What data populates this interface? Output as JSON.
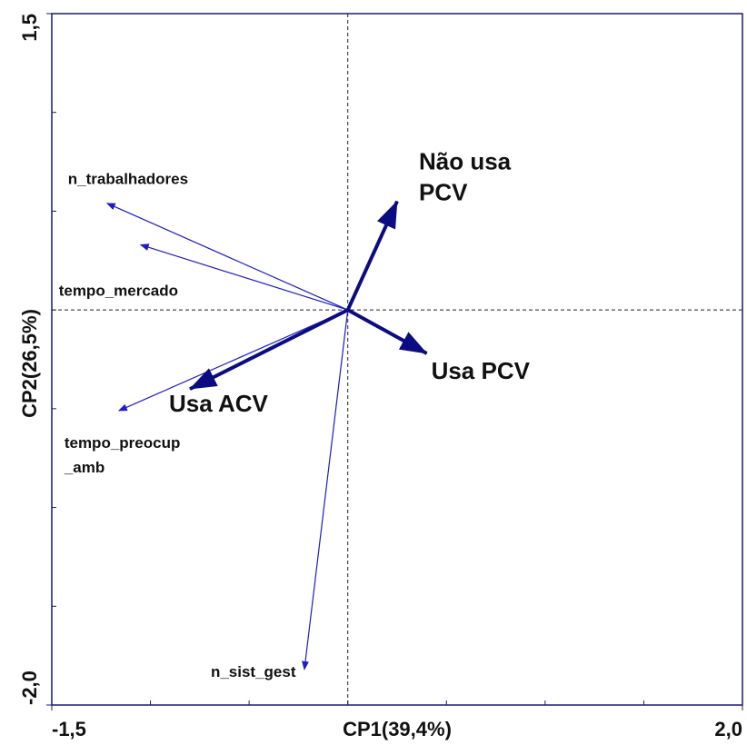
{
  "chart_data": {
    "type": "biplot",
    "x_label": "CP1(39,4%)",
    "y_label": "CP2(26,5%)",
    "xlim": [
      -1.5,
      2.0
    ],
    "ylim": [
      -2.0,
      1.5
    ],
    "xticks": [
      {
        "value": -1.5,
        "label": "-1,5"
      },
      {
        "value": 2.0,
        "label": "2,0"
      }
    ],
    "yticks": [
      {
        "value": -2.0,
        "label": "-2,0"
      },
      {
        "value": 1.5,
        "label": "1,5"
      }
    ],
    "xminor_ticks": [
      -1.0,
      -0.5,
      0,
      0.5,
      1.0,
      1.5
    ],
    "yminor_ticks": [
      -1.5,
      -1.0,
      -0.5,
      0,
      0.5,
      1.0
    ],
    "zero_lines": true,
    "vectors": [
      {
        "label_lines": [
          "n_trabalhadores"
        ],
        "x": -1.22,
        "y": 0.54,
        "style": "thin",
        "color": "#1c1cc8"
      },
      {
        "label_lines": [
          "tempo_mercado"
        ],
        "x": -1.05,
        "y": 0.33,
        "style": "thin",
        "color": "#1c1cc8"
      },
      {
        "label_lines": [
          "tempo_preocup",
          "_amb"
        ],
        "x": -1.16,
        "y": -0.51,
        "style": "thin",
        "color": "#1c1cc8"
      },
      {
        "label_lines": [
          "n_sist_gest"
        ],
        "x": -0.22,
        "y": -1.82,
        "style": "thin",
        "color": "#1c1cc8"
      },
      {
        "label_lines": [
          "Não usa",
          "PCV"
        ],
        "x": 0.25,
        "y": 0.55,
        "style": "thick",
        "color": "#0c0c82"
      },
      {
        "label_lines": [
          "Usa PCV"
        ],
        "x": 0.4,
        "y": -0.22,
        "style": "thick",
        "color": "#0c0c82"
      },
      {
        "label_lines": [
          "Usa ACV"
        ],
        "x": -0.8,
        "y": -0.4,
        "style": "thick",
        "color": "#0c0c82"
      }
    ]
  }
}
